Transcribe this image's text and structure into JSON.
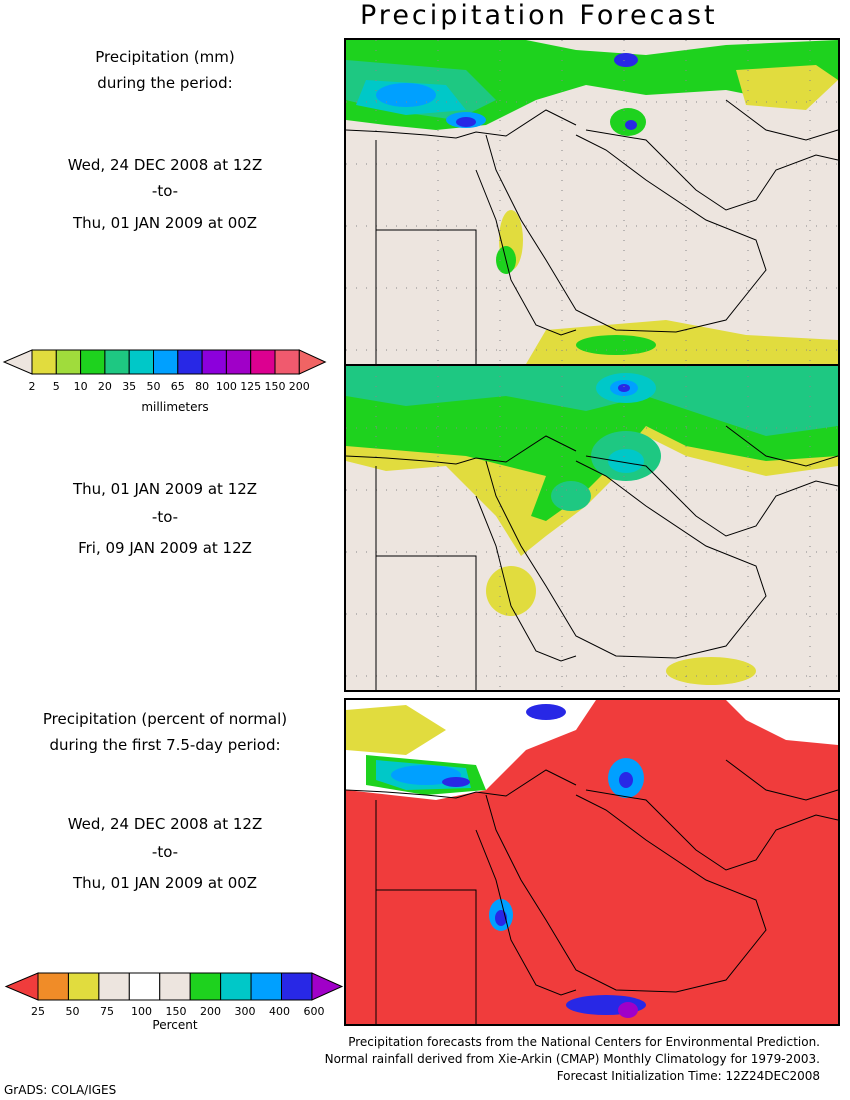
{
  "title": "Precipitation Forecast",
  "panel1": {
    "heading_line1": "Precipitation (mm)",
    "heading_line2": "during the period:",
    "start": "Wed, 24 DEC 2008 at 12Z",
    "to": "-to-",
    "end": "Thu, 01 JAN 2009 at 00Z"
  },
  "panel2": {
    "start": "Thu, 01 JAN 2009 at 12Z",
    "to": "-to-",
    "end": "Fri, 09 JAN 2009 at 12Z"
  },
  "panel3": {
    "heading_line1": "Precipitation (percent of normal)",
    "heading_line2": "during the first 7.5-day period:",
    "start": "Wed, 24 DEC 2008 at 12Z",
    "to": "-to-",
    "end": "Thu, 01 JAN 2009 at 00Z"
  },
  "mm_legend": {
    "unit": "millimeters",
    "labels": [
      "2",
      "5",
      "10",
      "20",
      "35",
      "50",
      "65",
      "80",
      "100",
      "125",
      "150",
      "200"
    ],
    "under_color": "#ede5df",
    "colors": [
      "#e1dc3e",
      "#a0dc3c",
      "#1ed21e",
      "#1ec882",
      "#00c8c8",
      "#00a0ff",
      "#2828e6",
      "#8c00dc",
      "#a000c8",
      "#dc0090",
      "#f05a6e",
      "#f06464"
    ]
  },
  "pct_legend": {
    "unit": "Percent",
    "labels": [
      "25",
      "50",
      "75",
      "100",
      "150",
      "200",
      "300",
      "400",
      "600"
    ],
    "colors": [
      "#f03c3c",
      "#f08c28",
      "#e1dc3e",
      "#ede5df",
      "#ffffff",
      "#ede5df",
      "#1ed21e",
      "#00c8c8",
      "#00a0ff",
      "#2828e6",
      "#a000c8"
    ]
  },
  "credits": {
    "line1": "Precipitation forecasts from the National Centers for Environmental Prediction.",
    "line2": "Normal rainfall derived from Xie-Arkin (CMAP) Monthly Climatology for 1979-2003.",
    "line3": "Forecast Initialization Time: 12Z24DEC2008"
  },
  "footer": "GrADS: COLA/IGES"
}
